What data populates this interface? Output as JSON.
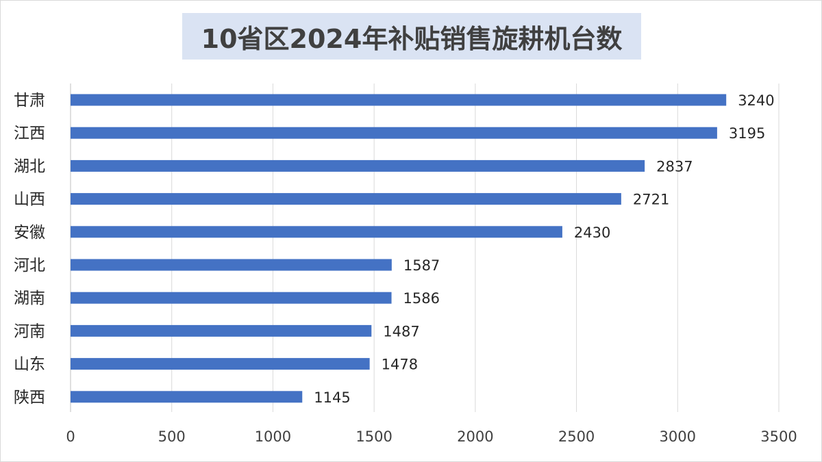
{
  "chart_data": {
    "type": "bar",
    "orientation": "horizontal",
    "title": "10省区2024年补贴销售旋耕机台数",
    "categories": [
      "甘肃",
      "江西",
      "湖北",
      "山西",
      "安徽",
      "河北",
      "湖南",
      "河南",
      "山东",
      "陕西"
    ],
    "values": [
      3240,
      3195,
      2837,
      2721,
      2430,
      1587,
      1586,
      1487,
      1478,
      1145
    ],
    "xlim": [
      0,
      3500
    ],
    "ticks": [
      0,
      500,
      1000,
      1500,
      2000,
      2500,
      3000,
      3500
    ],
    "grid": "vertical",
    "legend": "none",
    "bar_color": "#4472c4",
    "title_bg": "#dae3f3"
  }
}
